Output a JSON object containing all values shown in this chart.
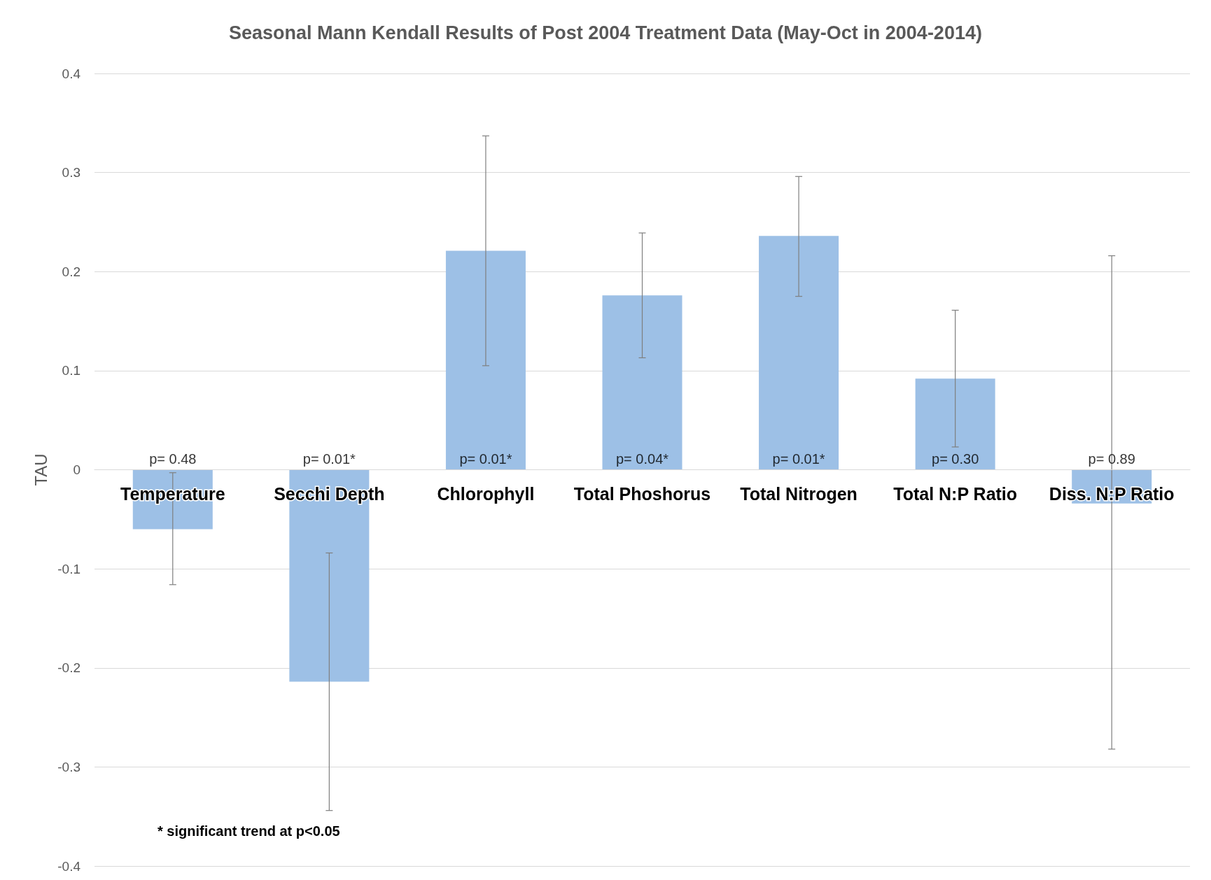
{
  "chart_data": {
    "type": "bar",
    "title": "Seasonal Mann Kendall Results of Post 2004 Treatment Data (May-Oct in 2004-2014)",
    "ylabel": "TAU",
    "categories": [
      "Temperature",
      "Secchi Depth",
      "Chlorophyll",
      "Total Phoshorus",
      "Total Nitrogen",
      "Total N:P Ratio",
      "Diss. N:P Ratio"
    ],
    "series": [
      {
        "color": "#9dc0e6",
        "values": [
          -0.06,
          -0.214,
          0.221,
          0.176,
          0.236,
          0.092,
          -0.034
        ],
        "errors": [
          [
            -0.116,
            -0.003
          ],
          [
            -0.344,
            -0.084
          ],
          [
            0.105,
            0.337
          ],
          [
            0.113,
            0.239
          ],
          [
            0.175,
            0.296
          ],
          [
            0.023,
            0.161
          ],
          [
            -0.282,
            0.216
          ]
        ]
      }
    ],
    "ylim": [
      -0.4,
      0.4
    ],
    "yticks": [
      -0.4,
      -0.3,
      -0.2,
      -0.1,
      0,
      0.1,
      0.2,
      0.3,
      0.4
    ],
    "grid": "y",
    "annotations": [
      {
        "text": "p= 0.48",
        "x": "Temperature",
        "y": 0
      },
      {
        "text": "p= 0.01*",
        "x": "Secchi Depth",
        "y": 0
      },
      {
        "text": "p= 0.01*",
        "x": "Chlorophyll",
        "y": 0
      },
      {
        "text": "p= 0.04*",
        "x": "Total Phoshorus",
        "y": 0
      },
      {
        "text": "p= 0.01*",
        "x": "Total Nitrogen",
        "y": 0
      },
      {
        "text": "p= 0.30",
        "x": "Total N:P Ratio",
        "y": 0
      },
      {
        "text": "p= 0.89",
        "x": "Diss. N:P Ratio",
        "y": 0
      },
      "* significant trend at p<0.05"
    ]
  }
}
